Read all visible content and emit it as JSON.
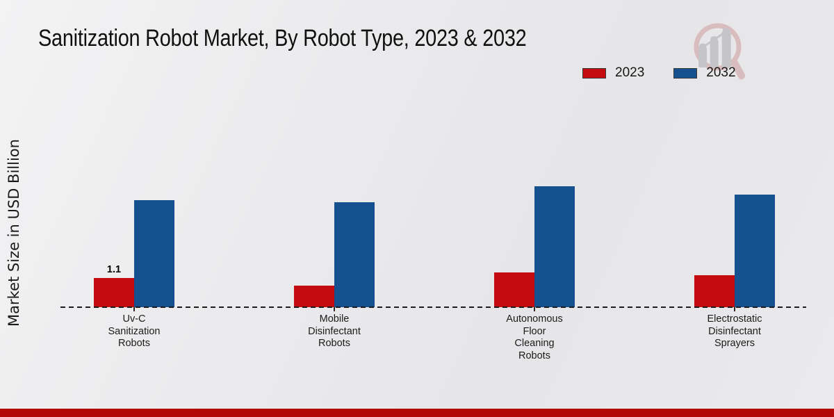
{
  "header": {
    "title": "Sanitization Robot Market, By Robot Type, 2023 & 2032"
  },
  "legend": {
    "items": [
      {
        "label": "2023",
        "color": "#c40b0e"
      },
      {
        "label": "2032",
        "color": "#16518f"
      }
    ]
  },
  "ylabel": "Market Size in USD Billion",
  "footer": {
    "bar_color": "#b20808"
  },
  "logo": {
    "name": "magnifier-bar-chart-logo",
    "ring_color": "#d9bcbe",
    "bars_color": "#c5c4c9"
  },
  "chart_data": {
    "type": "bar",
    "title": "Sanitization Robot Market, By Robot Type, 2023 & 2032",
    "xlabel": "",
    "ylabel": "Market Size in USD Billion",
    "categories": [
      "Uv-C\nSanitization\nRobots",
      "Mobile\nDisinfectant\nRobots",
      "Autonomous\nFloor\nCleaning\nRobots",
      "Electrostatic\nDisinfectant\nSprayers"
    ],
    "series": [
      {
        "name": "2023",
        "color": "#c40b0e",
        "values": [
          1.1,
          0.8,
          1.3,
          1.2
        ]
      },
      {
        "name": "2032",
        "color": "#16518f",
        "values": [
          4.0,
          3.9,
          4.5,
          4.2
        ]
      }
    ],
    "value_labels": [
      {
        "series": "2023",
        "category_index": 0,
        "text": "1.1"
      }
    ],
    "ylim": [
      0,
      5
    ],
    "grid": false,
    "baseline_style": "dashed",
    "legend_position": "top-right"
  }
}
